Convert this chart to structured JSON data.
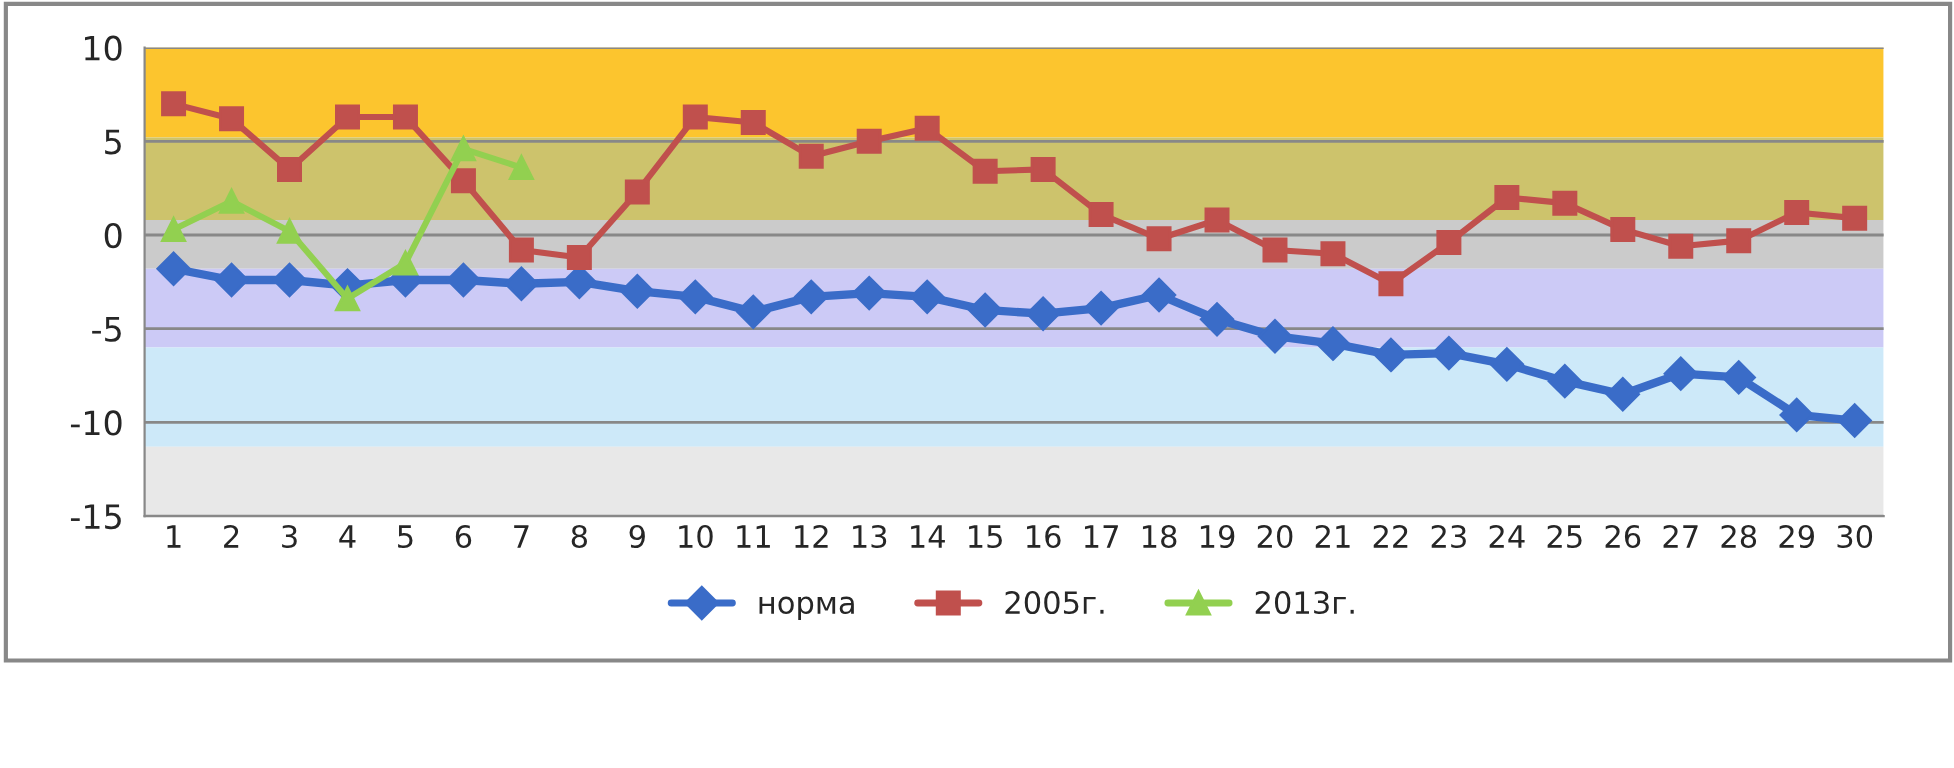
{
  "chart_data": {
    "type": "line",
    "categories": [
      "1",
      "2",
      "3",
      "4",
      "5",
      "6",
      "7",
      "8",
      "9",
      "10",
      "11",
      "12",
      "13",
      "14",
      "15",
      "16",
      "17",
      "18",
      "19",
      "20",
      "21",
      "22",
      "23",
      "24",
      "25",
      "26",
      "27",
      "28",
      "29",
      "30"
    ],
    "series": [
      {
        "name": "норма",
        "color": "#3a6cc8",
        "marker": "diamond",
        "values": [
          -1.8,
          -2.4,
          -2.4,
          -2.7,
          -2.4,
          -2.4,
          -2.6,
          -2.5,
          -3.0,
          -3.3,
          -4.1,
          -3.3,
          -3.1,
          -3.3,
          -4.0,
          -4.2,
          -3.9,
          -3.2,
          -4.5,
          -5.4,
          -5.8,
          -6.4,
          -6.3,
          -6.9,
          -7.8,
          -8.5,
          -7.4,
          -7.6,
          -9.6,
          -9.9
        ]
      },
      {
        "name": "2005г.",
        "color": "#c0504d",
        "marker": "square",
        "values": [
          7.0,
          6.2,
          3.5,
          6.3,
          6.3,
          2.9,
          -0.8,
          -1.2,
          2.3,
          6.3,
          6.0,
          4.2,
          5.0,
          5.7,
          3.4,
          3.5,
          1.1,
          -0.2,
          0.8,
          -0.8,
          -1.0,
          -2.6,
          -0.4,
          2.0,
          1.7,
          0.3,
          -0.6,
          -0.3,
          1.2,
          0.9
        ]
      },
      {
        "name": "2013г.",
        "color": "#92d050",
        "marker": "triangle",
        "values": [
          0.3,
          1.8,
          0.2,
          -3.4,
          -1.5,
          4.6,
          3.6,
          null,
          null,
          null,
          null,
          null,
          null,
          null,
          null,
          null,
          null,
          null,
          null,
          null,
          null,
          null,
          null,
          null,
          null,
          null,
          null,
          null,
          null,
          null
        ]
      }
    ],
    "ylim": [
      -15,
      10
    ],
    "yticks": [
      -15,
      -10,
      -5,
      0,
      5,
      10
    ],
    "grid": "y",
    "legend": "bottom",
    "bands": [
      {
        "axis": "y",
        "from": 5.2,
        "to": 10,
        "color": "#fcc52e"
      },
      {
        "axis": "y",
        "from": 0.8,
        "to": 5.2,
        "color": "#cdc36c"
      },
      {
        "axis": "y",
        "from": -1.8,
        "to": 0.8,
        "color": "#cbcbcb"
      },
      {
        "axis": "y",
        "from": -6.0,
        "to": -1.8,
        "color": "#cccaf6"
      },
      {
        "axis": "y",
        "from": -11.3,
        "to": -6.0,
        "color": "#cde9f9"
      },
      {
        "axis": "y",
        "from": -15,
        "to": -11.3,
        "color": "#e8e8e8"
      }
    ]
  }
}
